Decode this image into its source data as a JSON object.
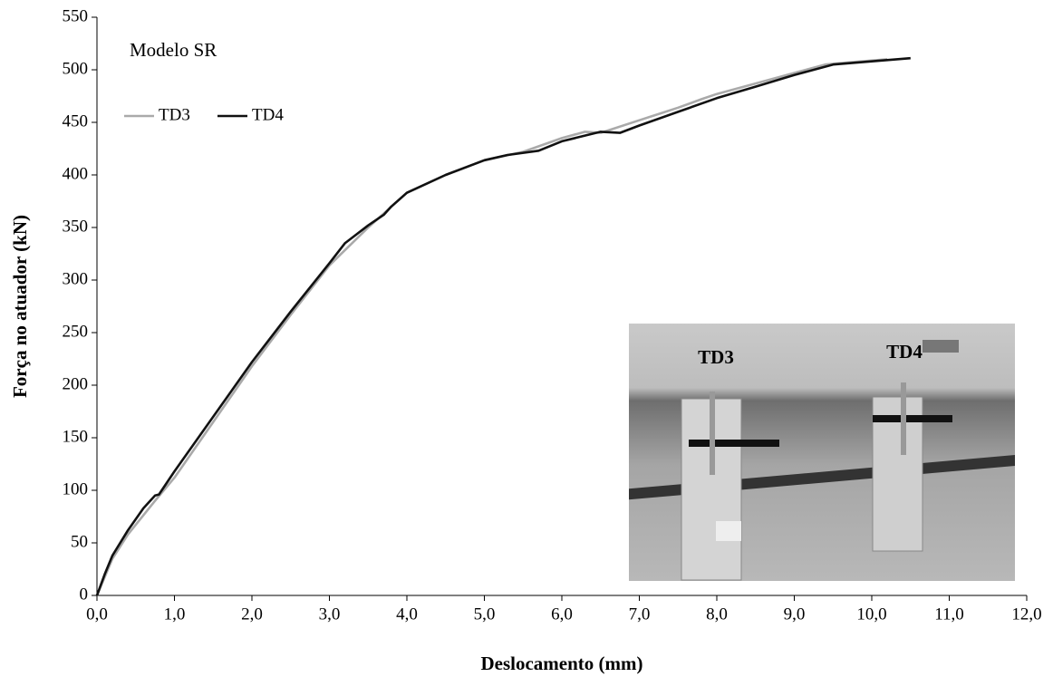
{
  "chart_data": {
    "type": "line",
    "annotation": "Modelo SR",
    "xlabel": "Deslocamento (mm)",
    "ylabel": "Força no atuador (kN)",
    "inset_labels": [
      "TD3",
      "TD4"
    ],
    "xlim": [
      0,
      12
    ],
    "ylim": [
      0,
      550
    ],
    "xticks": [
      {
        "value": 0,
        "label": "0,0"
      },
      {
        "value": 1,
        "label": "1,0"
      },
      {
        "value": 2,
        "label": "2,0"
      },
      {
        "value": 3,
        "label": "3,0"
      },
      {
        "value": 4,
        "label": "4,0"
      },
      {
        "value": 5,
        "label": "5,0"
      },
      {
        "value": 6,
        "label": "6,0"
      },
      {
        "value": 7,
        "label": "7,0"
      },
      {
        "value": 8,
        "label": "8,0"
      },
      {
        "value": 9,
        "label": "9,0"
      },
      {
        "value": 10,
        "label": "10,0"
      },
      {
        "value": 11,
        "label": "11,0"
      },
      {
        "value": 12,
        "label": "12,0"
      }
    ],
    "yticks": [
      0,
      50,
      100,
      150,
      200,
      250,
      300,
      350,
      400,
      450,
      500,
      550
    ],
    "series": [
      {
        "name": "TD3",
        "color": "#aaaaaa",
        "x": [
          0,
          0.2,
          0.4,
          0.75,
          1.0,
          1.5,
          2.0,
          2.5,
          3.0,
          3.5,
          4.0,
          4.5,
          5.0,
          5.5,
          6.0,
          6.3,
          6.5,
          7.0,
          7.5,
          7.8,
          8.0,
          8.5,
          9.0,
          9.4,
          9.7,
          10.2
        ],
        "values": [
          0,
          35,
          58,
          90,
          112,
          165,
          218,
          267,
          314,
          350,
          383,
          400,
          414,
          422,
          435,
          441,
          440,
          452,
          464,
          472,
          477,
          487,
          497,
          505,
          507,
          510
        ]
      },
      {
        "name": "TD4",
        "color": "#111111",
        "x": [
          0,
          0.1,
          0.2,
          0.4,
          0.6,
          0.75,
          0.8,
          1.0,
          1.5,
          2.0,
          2.5,
          3.0,
          3.2,
          3.5,
          3.7,
          3.8,
          4.0,
          4.5,
          5.0,
          5.3,
          5.7,
          6.0,
          6.5,
          6.75,
          7.0,
          7.5,
          8.0,
          8.5,
          9.0,
          9.5,
          10.0,
          10.5
        ],
        "values": [
          0,
          20,
          38,
          62,
          83,
          95,
          96,
          118,
          170,
          222,
          270,
          316,
          335,
          352,
          362,
          370,
          383,
          400,
          414,
          419,
          423,
          432,
          441,
          440,
          447,
          460,
          473,
          484,
          495,
          505,
          508,
          511
        ]
      }
    ]
  }
}
